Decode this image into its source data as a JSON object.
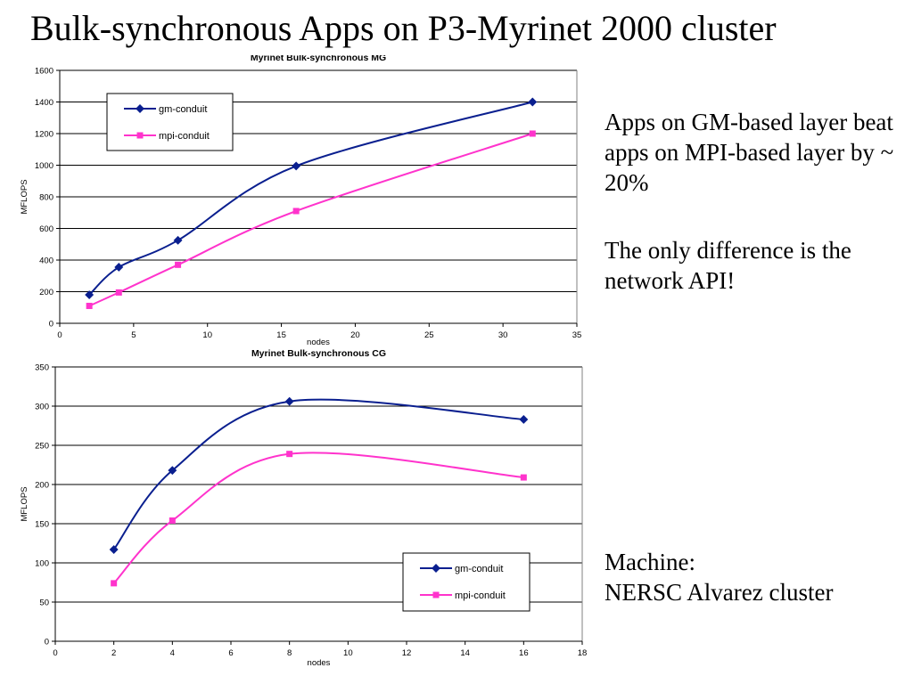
{
  "slide": {
    "title": "Bulk-synchronous Apps on P3-Myrinet 2000 cluster",
    "note1": "Apps on GM-based layer beat apps on MPI-based layer by ~ 20%",
    "note2": "The only difference is the network API!",
    "machine_line1": "Machine:",
    "machine_line2": "NERSC Alvarez cluster"
  },
  "colors": {
    "gm": "#0a1f8f",
    "mpi": "#ff33cc",
    "grid": "#000000"
  },
  "chart_data": [
    {
      "type": "line",
      "title": "Myrinet Bulk-synchronous MG",
      "xlabel": "nodes",
      "ylabel": "MFLOPS",
      "xlim": [
        0,
        35
      ],
      "ylim": [
        0,
        1600
      ],
      "xticks": [
        0,
        5,
        10,
        15,
        20,
        25,
        30,
        35
      ],
      "yticks": [
        0,
        200,
        400,
        600,
        800,
        1000,
        1200,
        1400,
        1600
      ],
      "grid": true,
      "legend_position": "top-left",
      "x": [
        2,
        4,
        8,
        16,
        32
      ],
      "series": [
        {
          "name": "gm-conduit",
          "values": [
            180,
            355,
            525,
            995,
            1400
          ]
        },
        {
          "name": "mpi-conduit",
          "values": [
            110,
            195,
            370,
            710,
            1200
          ]
        }
      ]
    },
    {
      "type": "line",
      "title": "Myrinet Bulk-synchronous CG",
      "xlabel": "nodes",
      "ylabel": "MFLOPS",
      "xlim": [
        0,
        18
      ],
      "ylim": [
        0,
        350
      ],
      "xticks": [
        0,
        2,
        4,
        6,
        8,
        10,
        12,
        14,
        16,
        18
      ],
      "yticks": [
        0,
        50,
        100,
        150,
        200,
        250,
        300,
        350
      ],
      "grid": true,
      "legend_position": "bottom-right",
      "x": [
        2,
        4,
        8,
        16
      ],
      "series": [
        {
          "name": "gm-conduit",
          "values": [
            117,
            218,
            306,
            283
          ]
        },
        {
          "name": "mpi-conduit",
          "values": [
            74,
            154,
            239,
            209
          ]
        }
      ]
    }
  ]
}
